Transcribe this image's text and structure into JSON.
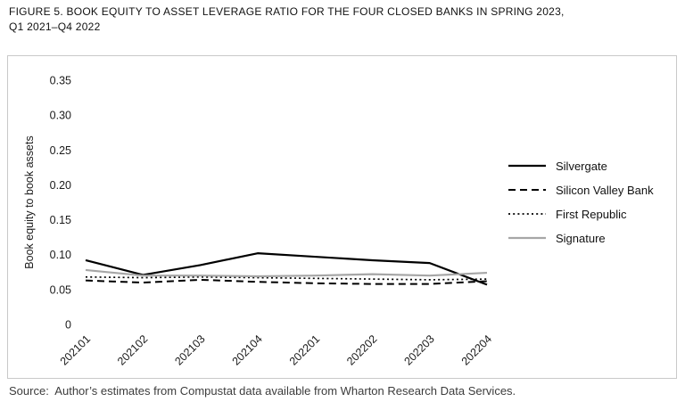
{
  "header": {
    "line1": "FIGURE 5. BOOK EQUITY TO ASSET LEVERAGE RATIO FOR THE FOUR CLOSED BANKS IN SPRING 2023,",
    "line2": "Q1 2021–Q4 2022"
  },
  "source": "Source:  Author’s estimates from Compustat data available from Wharton Research Data Services.",
  "chart_data": {
    "type": "line",
    "title": "FIGURE 5. BOOK EQUITY TO ASSET LEVERAGE RATIO FOR THE FOUR CLOSED BANKS IN SPRING 2023, Q1 2021–Q4 2022",
    "xlabel": "",
    "ylabel": "Book equity to book assets",
    "ylim": [
      0,
      0.35
    ],
    "ytick_labels": [
      "0",
      "0.05",
      "0.10",
      "0.15",
      "0.20",
      "0.25",
      "0.30",
      "0.35"
    ],
    "grid": false,
    "legend_position": "right",
    "categories": [
      "202101",
      "202102",
      "202103",
      "202104",
      "202201",
      "202202",
      "202203",
      "202204"
    ],
    "series": [
      {
        "name": "Silvergate",
        "style": "solid",
        "color": "#000000",
        "values": [
          0.092,
          0.071,
          0.085,
          0.102,
          0.097,
          0.092,
          0.088,
          0.057
        ]
      },
      {
        "name": "Silicon Valley Bank",
        "style": "dashed",
        "color": "#000000",
        "values": [
          0.063,
          0.06,
          0.064,
          0.061,
          0.059,
          0.058,
          0.058,
          0.062
        ]
      },
      {
        "name": "First Republic",
        "style": "dotted",
        "color": "#000000",
        "values": [
          0.068,
          0.067,
          0.068,
          0.067,
          0.066,
          0.065,
          0.064,
          0.065
        ]
      },
      {
        "name": "Signature",
        "style": "solid",
        "color": "#a6a6a6",
        "values": [
          0.078,
          0.07,
          0.07,
          0.069,
          0.07,
          0.072,
          0.07,
          0.074
        ]
      }
    ]
  }
}
